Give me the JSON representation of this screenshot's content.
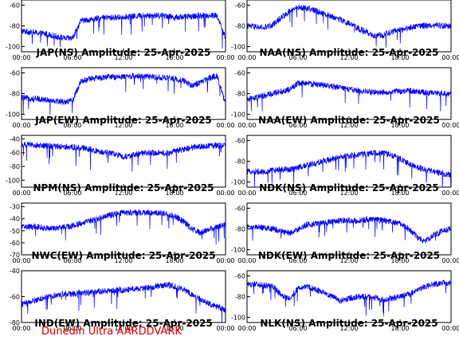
{
  "footer": {
    "text": "Dunedin Ultra AARDDVARK",
    "color": "#dd0000"
  },
  "style": {
    "line_color": "#0000ff",
    "axis_color": "#000000"
  },
  "x_ticks": [
    "00:00",
    "06:00",
    "12:00",
    "18:00",
    "00:00"
  ],
  "chart_data": [
    {
      "type": "line",
      "title": "JAP(NS) Amplitude: 25-Apr-2025",
      "ylim": [
        -105,
        -55
      ],
      "yticks": [
        -60,
        -80,
        -100
      ],
      "xlim": [
        0,
        24
      ],
      "x": [
        0,
        1,
        2,
        3,
        4,
        5,
        6,
        7,
        8,
        9,
        10,
        11,
        12,
        13,
        14,
        15,
        16,
        17,
        18,
        19,
        20,
        21,
        22,
        23,
        24
      ],
      "series": [
        {
          "values": [
            -85,
            -86,
            -87,
            -88,
            -90,
            -92,
            -92,
            -75,
            -74,
            -73,
            -72,
            -72,
            -71,
            -71,
            -70,
            -70,
            -70,
            -70,
            -72,
            -71,
            -71,
            -70,
            -70,
            -70,
            -92
          ]
        }
      ]
    },
    {
      "type": "line",
      "title": "NAA(NS) Amplitude: 25-Apr-2025",
      "ylim": [
        -105,
        -55
      ],
      "yticks": [
        -60,
        -80,
        -100
      ],
      "xlim": [
        0,
        24
      ],
      "x": [
        0,
        1,
        2,
        3,
        4,
        5,
        6,
        7,
        8,
        9,
        10,
        11,
        12,
        13,
        14,
        15,
        16,
        17,
        18,
        19,
        20,
        21,
        22,
        23,
        24
      ],
      "series": [
        {
          "values": [
            -80,
            -81,
            -82,
            -79,
            -72,
            -66,
            -62,
            -63,
            -65,
            -68,
            -71,
            -74,
            -78,
            -82,
            -86,
            -90,
            -89,
            -86,
            -84,
            -82,
            -80,
            -80,
            -79,
            -80,
            -80
          ]
        }
      ]
    },
    {
      "type": "line",
      "title": "JAP(EW) Amplitude: 25-Apr-2025",
      "ylim": [
        -105,
        -55
      ],
      "yticks": [
        -60,
        -80,
        -100
      ],
      "xlim": [
        0,
        24
      ],
      "x": [
        0,
        1,
        2,
        3,
        4,
        5,
        6,
        7,
        8,
        9,
        10,
        11,
        12,
        13,
        14,
        15,
        16,
        17,
        18,
        19,
        20,
        21,
        22,
        23,
        24
      ],
      "series": [
        {
          "values": [
            -84,
            -85,
            -85,
            -86,
            -87,
            -88,
            -87,
            -68,
            -66,
            -65,
            -64,
            -64,
            -64,
            -63,
            -63,
            -64,
            -64,
            -65,
            -66,
            -67,
            -72,
            -70,
            -65,
            -63,
            -90
          ]
        }
      ]
    },
    {
      "type": "line",
      "title": "NAA(EW) Amplitude: 25-Apr-2025",
      "ylim": [
        -105,
        -55
      ],
      "yticks": [
        -60,
        -80,
        -100
      ],
      "xlim": [
        0,
        24
      ],
      "x": [
        0,
        1,
        2,
        3,
        4,
        5,
        6,
        7,
        8,
        9,
        10,
        11,
        12,
        13,
        14,
        15,
        16,
        17,
        18,
        19,
        20,
        21,
        22,
        23,
        24
      ],
      "series": [
        {
          "values": [
            -86,
            -84,
            -82,
            -80,
            -78,
            -76,
            -70,
            -70,
            -71,
            -72,
            -73,
            -74,
            -76,
            -77,
            -78,
            -79,
            -79,
            -78,
            -78,
            -77,
            -78,
            -79,
            -80,
            -80,
            -80
          ]
        }
      ]
    },
    {
      "type": "line",
      "title": "NPM(NS) Amplitude: 25-Apr-2025",
      "ylim": [
        -110,
        -35
      ],
      "yticks": [
        -40,
        -60,
        -80,
        -100
      ],
      "xlim": [
        0,
        24
      ],
      "x": [
        0,
        1,
        2,
        3,
        4,
        5,
        6,
        7,
        8,
        9,
        10,
        11,
        12,
        13,
        14,
        15,
        16,
        17,
        18,
        19,
        20,
        21,
        22,
        23,
        24
      ],
      "series": [
        {
          "values": [
            -49,
            -49,
            -50,
            -50,
            -51,
            -51,
            -52,
            -53,
            -55,
            -58,
            -60,
            -62,
            -66,
            -64,
            -61,
            -60,
            -60,
            -61,
            -58,
            -56,
            -53,
            -51,
            -50,
            -50,
            -49
          ]
        }
      ]
    },
    {
      "type": "line",
      "title": "NDK(NS) Amplitude: 25-Apr-2025",
      "ylim": [
        -105,
        -55
      ],
      "yticks": [
        -60,
        -80,
        -100
      ],
      "xlim": [
        0,
        24
      ],
      "x": [
        0,
        1,
        2,
        3,
        4,
        5,
        6,
        7,
        8,
        9,
        10,
        11,
        12,
        13,
        14,
        15,
        16,
        17,
        18,
        19,
        20,
        21,
        22,
        23,
        24
      ],
      "series": [
        {
          "values": [
            -90,
            -90,
            -90,
            -89,
            -88,
            -88,
            -86,
            -84,
            -82,
            -80,
            -78,
            -76,
            -75,
            -74,
            -73,
            -72,
            -72,
            -74,
            -78,
            -82,
            -86,
            -88,
            -90,
            -92,
            -93
          ]
        }
      ]
    },
    {
      "type": "line",
      "title": "NWC(EW) Amplitude: 25-Apr-2025",
      "ylim": [
        -70,
        -27
      ],
      "yticks": [
        -30,
        -40,
        -50,
        -60,
        -70
      ],
      "xlim": [
        0,
        24
      ],
      "x": [
        0,
        1,
        2,
        3,
        4,
        5,
        6,
        7,
        8,
        9,
        10,
        11,
        12,
        13,
        14,
        15,
        16,
        17,
        18,
        19,
        20,
        21,
        22,
        23,
        24
      ],
      "series": [
        {
          "values": [
            -46,
            -47,
            -47,
            -48,
            -48,
            -47,
            -46,
            -44,
            -42,
            -40,
            -38,
            -36,
            -35,
            -35,
            -35,
            -35,
            -35,
            -36,
            -38,
            -42,
            -48,
            -52,
            -49,
            -47,
            -45
          ]
        }
      ]
    },
    {
      "type": "line",
      "title": "NDK(EW) Amplitude: 25-Apr-2025",
      "ylim": [
        -105,
        -55
      ],
      "yticks": [
        -60,
        -80,
        -100
      ],
      "xlim": [
        0,
        24
      ],
      "x": [
        0,
        1,
        2,
        3,
        4,
        5,
        6,
        7,
        8,
        9,
        10,
        11,
        12,
        13,
        14,
        15,
        16,
        17,
        18,
        19,
        20,
        21,
        22,
        23,
        24
      ],
      "series": [
        {
          "values": [
            -78,
            -78,
            -79,
            -80,
            -82,
            -84,
            -80,
            -76,
            -75,
            -74,
            -73,
            -72,
            -72,
            -72,
            -71,
            -71,
            -72,
            -73,
            -75,
            -80,
            -88,
            -92,
            -86,
            -82,
            -80
          ]
        }
      ]
    },
    {
      "type": "line",
      "title": "IND(EW) Amplitude: 25-Apr-2025",
      "ylim": [
        -80,
        -40
      ],
      "yticks": [
        -40,
        -60,
        -80
      ],
      "xlim": [
        0,
        24
      ],
      "x": [
        0,
        1,
        2,
        3,
        4,
        5,
        6,
        7,
        8,
        9,
        10,
        11,
        12,
        13,
        14,
        15,
        16,
        17,
        18,
        19,
        20,
        21,
        22,
        23,
        24
      ],
      "series": [
        {
          "values": [
            -66,
            -64,
            -62,
            -60,
            -59,
            -58,
            -58,
            -57,
            -57,
            -56,
            -56,
            -55,
            -55,
            -54,
            -54,
            -53,
            -52,
            -51,
            -52,
            -54,
            -58,
            -62,
            -65,
            -68,
            -70
          ]
        }
      ]
    },
    {
      "type": "line",
      "title": "NLK(NS) Amplitude: 25-Apr-2025",
      "ylim": [
        -105,
        -55
      ],
      "yticks": [
        -60,
        -80,
        -100
      ],
      "xlim": [
        0,
        24
      ],
      "x": [
        0,
        1,
        2,
        3,
        4,
        5,
        6,
        7,
        8,
        9,
        10,
        11,
        12,
        13,
        14,
        15,
        16,
        17,
        18,
        19,
        20,
        21,
        22,
        23,
        24
      ],
      "series": [
        {
          "values": [
            -68,
            -68,
            -69,
            -70,
            -78,
            -82,
            -72,
            -70,
            -73,
            -76,
            -80,
            -84,
            -82,
            -80,
            -80,
            -81,
            -83,
            -82,
            -80,
            -78,
            -74,
            -70,
            -68,
            -67,
            -67
          ]
        }
      ]
    }
  ]
}
